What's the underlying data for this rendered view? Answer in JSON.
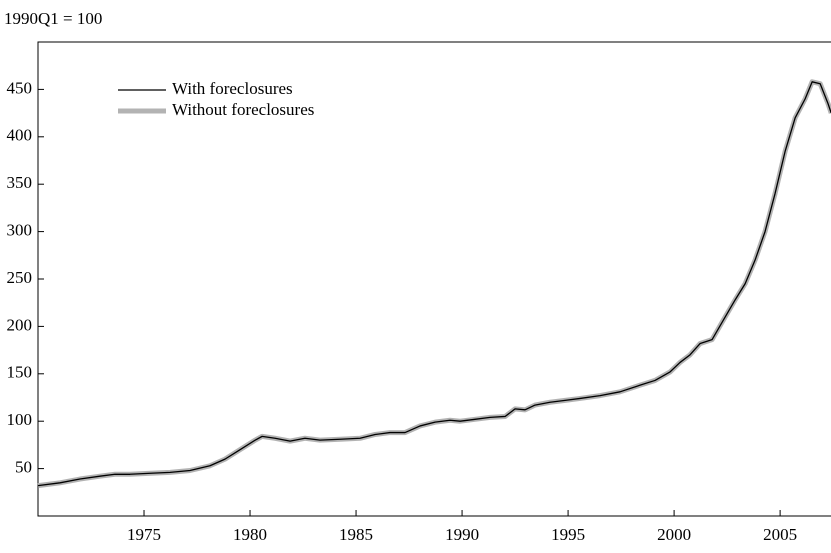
{
  "chart_data": {
    "type": "line",
    "title": "1990Q1 = 100",
    "x": [
      1970.0,
      1971.04,
      1971.98,
      1972.92,
      1973.63,
      1974.34,
      1975.19,
      1976.23,
      1977.17,
      1978.11,
      1978.82,
      1979.53,
      1980.24,
      1980.57,
      1981.18,
      1981.89,
      1982.59,
      1983.3,
      1984.25,
      1985.19,
      1985.9,
      1986.6,
      1987.31,
      1988.02,
      1988.73,
      1989.43,
      1989.91,
      1990.61,
      1991.32,
      1992.03,
      1992.5,
      1992.97,
      1993.44,
      1994.15,
      1994.86,
      1995.57,
      1996.51,
      1997.45,
      1998.4,
      1999.1,
      1999.81,
      2000.28,
      2000.75,
      2001.23,
      2001.79,
      2002.41,
      2002.88,
      2003.35,
      2003.82,
      2004.29,
      2004.76,
      2005.24,
      2005.71,
      2006.18,
      2006.51,
      2006.89,
      2007.26,
      2007.41
    ],
    "series": [
      {
        "name": "Without foreclosures",
        "color": "#b3b3b3",
        "width": 5,
        "values": [
          32,
          35,
          39,
          42,
          44,
          44,
          45,
          46,
          48,
          53,
          60,
          70,
          80,
          84,
          82,
          79,
          82,
          80,
          81,
          82,
          86,
          88,
          88,
          95,
          99,
          101,
          100,
          102,
          104,
          105,
          113,
          112,
          117,
          120,
          122,
          124,
          127,
          131,
          138,
          143,
          152,
          162,
          170,
          182,
          186,
          210,
          228,
          245,
          270,
          300,
          340,
          385,
          420,
          440,
          458,
          456,
          435,
          425
        ]
      },
      {
        "name": "With foreclosures",
        "color": "#000000",
        "width": 1.3,
        "values": [
          32,
          35,
          39,
          42,
          44,
          44,
          45,
          46,
          48,
          53,
          60,
          70,
          80,
          84,
          82,
          79,
          82,
          80,
          81,
          82,
          86,
          88,
          88,
          95,
          99,
          101,
          100,
          102,
          104,
          105,
          113,
          112,
          117,
          120,
          122,
          124,
          127,
          131,
          138,
          143,
          152,
          162,
          170,
          182,
          186,
          210,
          228,
          245,
          270,
          300,
          340,
          385,
          420,
          440,
          458,
          456,
          435,
          425
        ]
      }
    ],
    "xlim": [
      1970,
      2007.4
    ],
    "xticks": [
      1975,
      1980,
      1985,
      1990,
      1995,
      2000,
      2005
    ],
    "ylim": [
      0,
      500
    ],
    "yticks": [
      50,
      100,
      150,
      200,
      250,
      300,
      350,
      400,
      450
    ],
    "legend": "upper left"
  }
}
